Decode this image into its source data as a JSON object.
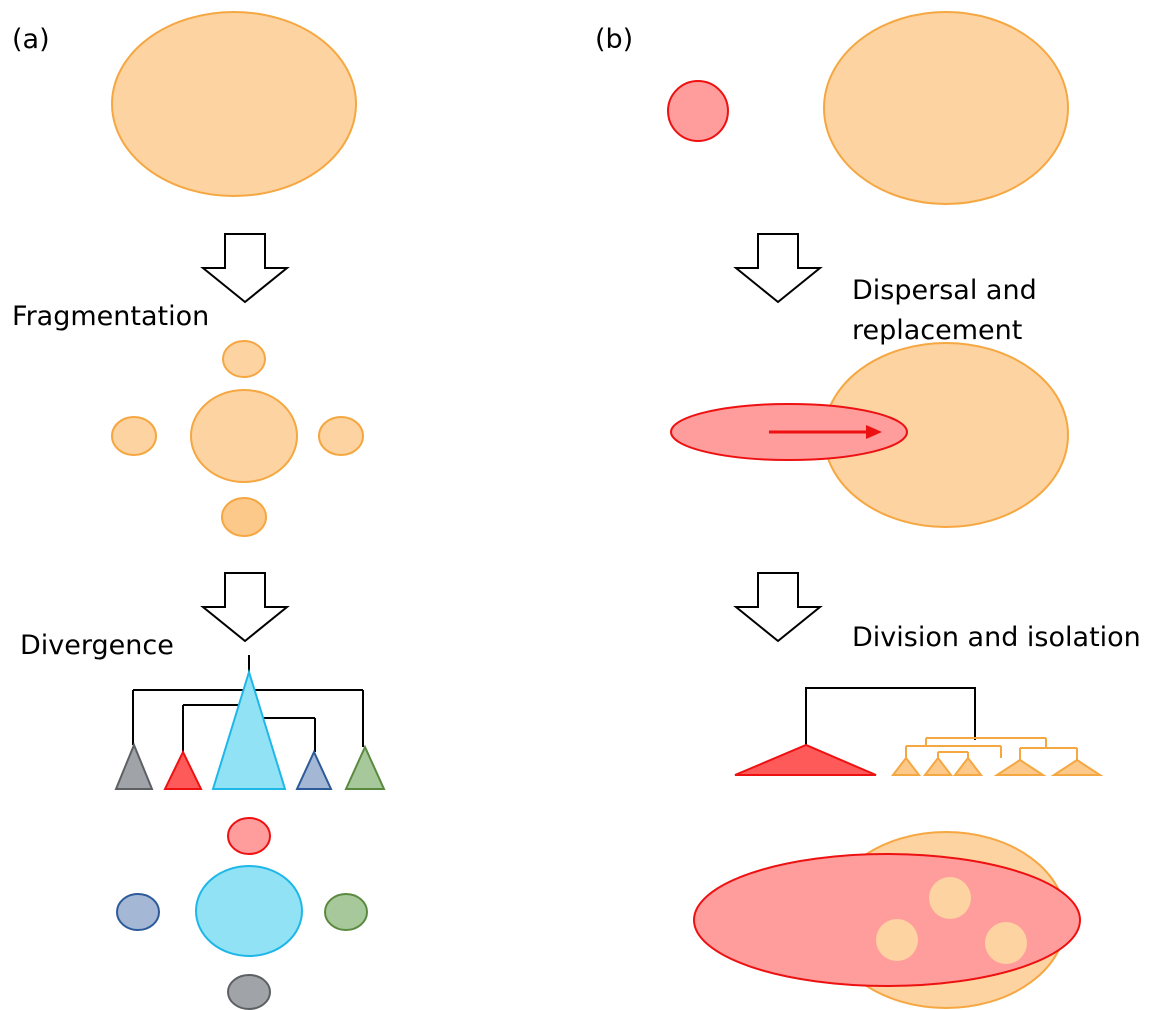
{
  "panels": [
    {
      "label": "(a)",
      "steps": [
        "Fragmentation",
        "Divergence"
      ]
    },
    {
      "label": "(b)",
      "steps": [
        [
          "Dispersal and",
          "replacement"
        ],
        "Division and isolation"
      ]
    }
  ]
}
